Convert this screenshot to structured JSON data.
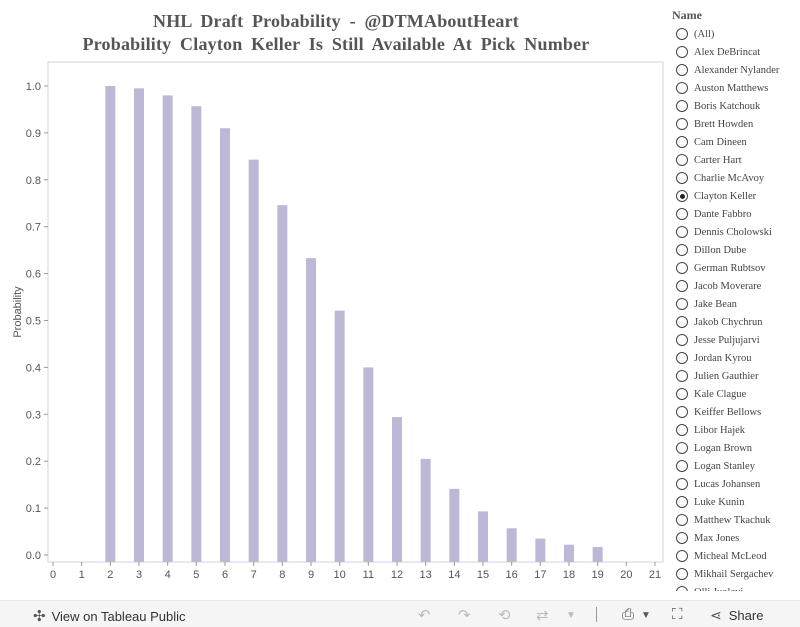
{
  "chart_data": {
    "type": "bar",
    "title": "NHL Draft Probability - @DTMAboutHeart",
    "subtitle": "Probability Clayton Keller Is Still Available At Pick Number",
    "ylabel": "Probability",
    "xlabel": "",
    "xlim": [
      0,
      21
    ],
    "ylim": [
      0,
      1.05
    ],
    "y_ticks": [
      0.0,
      0.1,
      0.2,
      0.3,
      0.4,
      0.5,
      0.6,
      0.7,
      0.8,
      0.9,
      1.0
    ],
    "x_ticks": [
      0,
      1,
      2,
      3,
      4,
      5,
      6,
      7,
      8,
      9,
      10,
      11,
      12,
      13,
      14,
      15,
      16,
      17,
      18,
      19,
      20,
      21
    ],
    "grid": false,
    "bar_color": "#bdb8d6",
    "x": [
      2,
      3,
      4,
      5,
      6,
      7,
      8,
      9,
      10,
      11,
      12,
      13,
      14,
      15,
      16,
      17,
      18,
      19
    ],
    "values": [
      1.0,
      0.995,
      0.98,
      0.957,
      0.91,
      0.843,
      0.746,
      0.633,
      0.521,
      0.4,
      0.294,
      0.205,
      0.141,
      0.093,
      0.057,
      0.035,
      0.022,
      0.017
    ]
  },
  "filter": {
    "title": "Name",
    "selected": "Clayton Keller",
    "items": [
      "(All)",
      "Alex DeBrincat",
      "Alexander Nylander",
      "Auston Matthews",
      "Boris Katchouk",
      "Brett Howden",
      "Cam Dineen",
      "Carter Hart",
      "Charlie McAvoy",
      "Clayton Keller",
      "Dante Fabbro",
      "Dennis Cholowski",
      "Dillon Dube",
      "German Rubtsov",
      "Jacob Moverare",
      "Jake Bean",
      "Jakob Chychrun",
      "Jesse Puljujarvi",
      "Jordan Kyrou",
      "Julien Gauthier",
      "Kale Clague",
      "Keiffer Bellows",
      "Libor Hajek",
      "Logan Brown",
      "Logan Stanley",
      "Lucas Johansen",
      "Luke Kunin",
      "Matthew Tkachuk",
      "Max Jones",
      "Micheal McLeod",
      "Mikhail Sergachev",
      "Olli Juolevi"
    ]
  },
  "footer": {
    "view_label": "View on Tableau Public",
    "share_label": "Share"
  }
}
